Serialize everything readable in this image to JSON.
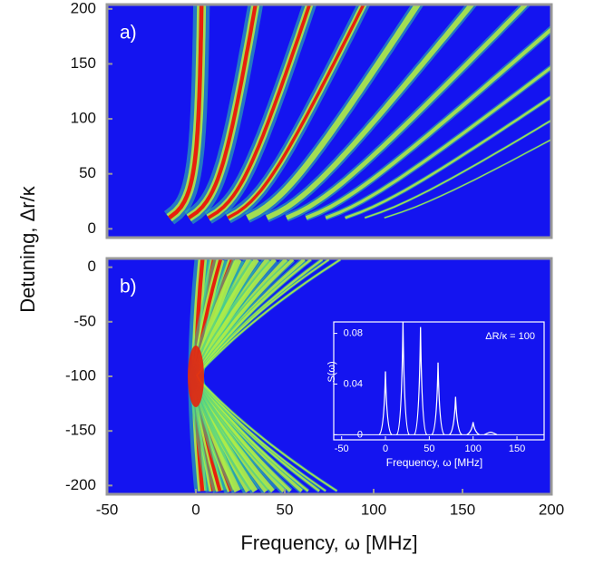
{
  "chart_data": [
    {
      "type": "heatmap",
      "panel_label": "a)",
      "ylabel": "Detuning, Δr/κ",
      "xlim": [
        -50,
        200
      ],
      "ylim": [
        -8,
        204
      ],
      "yticks": [
        0,
        50,
        100,
        150,
        200
      ],
      "color": "#1414f0"
    },
    {
      "type": "heatmap",
      "panel_label": "b)",
      "xlabel": "Frequency, ω [MHz]",
      "xlim": [
        -50,
        200
      ],
      "xticks": [
        -50,
        0,
        50,
        100,
        150,
        200
      ],
      "ylim": [
        -208,
        8
      ],
      "yticks": [
        0,
        -50,
        -100,
        -150,
        -200
      ],
      "color": "#1414f0"
    },
    {
      "type": "line",
      "xlabel": "Frequency, ω [MHz]",
      "ylabel": "S(ω)",
      "annotation": "ΔR/κ = 100",
      "x": [
        0,
        20,
        40,
        60,
        80,
        100,
        120
      ],
      "values": [
        0.05,
        0.089,
        0.085,
        0.057,
        0.03,
        0.01,
        0.002
      ],
      "xlim": [
        -59,
        181
      ],
      "ylim": [
        -0.004,
        0.089
      ],
      "xticks": [
        -50,
        0,
        50,
        100,
        150
      ],
      "yticks": [
        0,
        0.04,
        0.08
      ],
      "color": "#ffffff"
    }
  ]
}
